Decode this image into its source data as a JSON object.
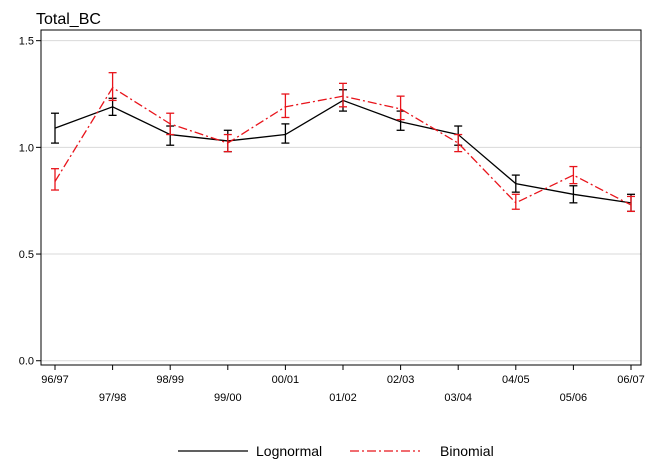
{
  "chart_data": {
    "type": "line",
    "title": "Total_BC",
    "xlabel": "",
    "ylabel": "",
    "categories": [
      "96/97",
      "97/98",
      "98/99",
      "99/00",
      "00/01",
      "01/02",
      "02/03",
      "03/04",
      "04/05",
      "05/06",
      "06/07"
    ],
    "ylim": [
      -0.02,
      1.55
    ],
    "yticks": [
      0.0,
      0.5,
      1.0,
      1.5
    ],
    "ytick_labels": [
      "0.0",
      "0.5",
      "1.0",
      "1.5"
    ],
    "grid": true,
    "legend_position": "bottom",
    "series": [
      {
        "name": "Lognormal",
        "color": "#000000",
        "line_style": "solid",
        "values": [
          1.09,
          1.19,
          1.06,
          1.03,
          1.06,
          1.22,
          1.12,
          1.06,
          0.83,
          0.78,
          0.74
        ],
        "lower": [
          1.02,
          1.15,
          1.01,
          0.98,
          1.02,
          1.17,
          1.08,
          1.01,
          0.79,
          0.74,
          0.7
        ],
        "upper": [
          1.16,
          1.23,
          1.1,
          1.08,
          1.11,
          1.27,
          1.17,
          1.1,
          0.87,
          0.82,
          0.78
        ]
      },
      {
        "name": "Binomial",
        "color": "#e8141b",
        "line_style": "dashdot",
        "values": [
          0.84,
          1.28,
          1.11,
          1.02,
          1.19,
          1.24,
          1.18,
          1.02,
          0.74,
          0.87,
          0.73
        ],
        "lower": [
          0.8,
          1.22,
          1.06,
          0.98,
          1.14,
          1.19,
          1.13,
          0.98,
          0.71,
          0.83,
          0.7
        ],
        "upper": [
          0.9,
          1.35,
          1.16,
          1.06,
          1.25,
          1.3,
          1.24,
          1.06,
          0.78,
          0.91,
          0.77
        ]
      }
    ]
  }
}
